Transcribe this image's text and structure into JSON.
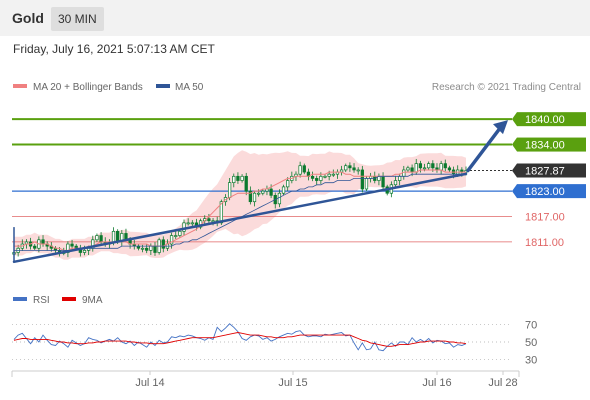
{
  "header": {
    "title": "Gold",
    "timeframe": "30 MIN"
  },
  "date_text": "Friday, July 16, 2021 5:07:13 AM CET",
  "copyright": "Research © 2021 Trading Central",
  "colors": {
    "ma20": "#f08080",
    "ma50": "#2f5597",
    "bollinger": "#f9cfcf",
    "candle": "#0b7a2e",
    "resistance": "#5aa00f",
    "support_blue": "#2f6fd0",
    "support_red": "#e06666",
    "current": "#333333",
    "trend": "#2f5597",
    "rsi": "#4472c4",
    "rsi_ma": "#e00000"
  },
  "chart_data": [
    {
      "type": "line",
      "legend": [
        {
          "name": "MA 20 + Bollinger Bands",
          "color": "#f08080"
        },
        {
          "name": "MA 50",
          "color": "#2f5597"
        }
      ],
      "x_ticks": [
        "Jul 14",
        "Jul 15",
        "Jul 16",
        "Jul 28"
      ],
      "ylim": [
        1802,
        1845
      ],
      "levels": [
        {
          "label": "1840.00",
          "value": 1840.0,
          "kind": "resistance"
        },
        {
          "label": "1834.00",
          "value": 1834.0,
          "kind": "resistance"
        },
        {
          "label": "1827.87",
          "value": 1827.87,
          "kind": "current"
        },
        {
          "label": "1823.00",
          "value": 1823.0,
          "kind": "support_blue"
        },
        {
          "label": "1817.00",
          "value": 1817.0,
          "kind": "support_red"
        },
        {
          "label": "1811.00",
          "value": 1811.0,
          "kind": "support_red"
        }
      ],
      "close": [
        1808.5,
        1809.5,
        1810.5,
        1811.0,
        1810.0,
        1809.5,
        1811.5,
        1810.5,
        1810.0,
        1809.5,
        1809.0,
        1808.5,
        1808.5,
        1810.5,
        1810.0,
        1809.5,
        1808.5,
        1809.0,
        1809.5,
        1811.5,
        1812.5,
        1811.0,
        1810.5,
        1811.0,
        1813.5,
        1811.0,
        1813.0,
        1811.5,
        1810.5,
        1810.0,
        1809.5,
        1809.5,
        1809.0,
        1810.0,
        1808.5,
        1811.5,
        1809.5,
        1810.5,
        1812.5,
        1812.5,
        1813.5,
        1815.5,
        1815.5,
        1815.5,
        1814.5,
        1816.0,
        1816.5,
        1816.0,
        1816.0,
        1815.5,
        1820.5,
        1821.5,
        1825.0,
        1826.5,
        1825.5,
        1826.5,
        1823.0,
        1820.5,
        1822.5,
        1822.5,
        1823.0,
        1823.5,
        1822.0,
        1820.0,
        1822.5,
        1824.0,
        1825.5,
        1826.5,
        1827.0,
        1829.0,
        1827.5,
        1826.5,
        1826.0,
        1825.5,
        1826.5,
        1826.5,
        1827.0,
        1827.0,
        1827.5,
        1828.0,
        1829.0,
        1828.5,
        1828.0,
        1828.0,
        1823.5,
        1826.0,
        1826.5,
        1825.5,
        1826.5,
        1824.0,
        1822.5,
        1824.5,
        1825.5,
        1826.5,
        1828.0,
        1828.5,
        1827.5,
        1829.5,
        1828.5,
        1828.5,
        1829.5,
        1828.5,
        1828.0,
        1829.5,
        1828.5,
        1828.0,
        1827.0,
        1828.0,
        1827.5,
        1827.87
      ],
      "ma20": [
        1810.0,
        1810.0,
        1810.0,
        1810.5,
        1810.5,
        1811.0,
        1810.5,
        1810.5,
        1810.5,
        1810.0,
        1809.5,
        1809.5,
        1809.0,
        1809.0,
        1809.5,
        1809.5,
        1809.5,
        1809.5,
        1810.0,
        1810.0,
        1810.5,
        1811.0,
        1811.0,
        1811.0,
        1811.0,
        1811.0,
        1811.0,
        1811.0,
        1810.5,
        1810.5,
        1810.5,
        1810.5,
        1810.5,
        1810.0,
        1810.0,
        1810.0,
        1810.0,
        1810.5,
        1811.0,
        1811.5,
        1812.0,
        1812.5,
        1813.0,
        1813.5,
        1814.0,
        1815.0,
        1816.0,
        1817.0,
        1818.0,
        1819.0,
        1820.0,
        1821.0,
        1821.5,
        1822.0,
        1822.5,
        1822.5,
        1822.5,
        1822.5,
        1823.0,
        1823.0,
        1823.5,
        1823.5,
        1824.0,
        1824.5,
        1825.0,
        1825.5,
        1826.0,
        1826.0,
        1826.5,
        1826.5,
        1826.5,
        1826.5,
        1827.0,
        1827.0,
        1827.0,
        1827.0,
        1827.5,
        1827.5,
        1827.5,
        1827.5,
        1827.0,
        1827.0,
        1826.5,
        1826.5,
        1826.5,
        1826.5,
        1826.5,
        1826.5,
        1826.5,
        1826.5,
        1826.5,
        1826.5,
        1827.0,
        1827.0,
        1827.5,
        1827.5,
        1827.5,
        1827.5,
        1828.0,
        1828.0,
        1828.0,
        1828.0,
        1828.0,
        1828.0,
        1827.5,
        1827.5,
        1827.5,
        1827.5,
        1827.5,
        1827.5
      ],
      "ma50": [
        1809.0,
        1809.0,
        1809.0,
        1809.0,
        1809.0,
        1809.0,
        1809.0,
        1809.0,
        1809.0,
        1809.0,
        1809.0,
        1809.0,
        1809.0,
        1809.0,
        1809.0,
        1809.5,
        1809.5,
        1809.5,
        1809.5,
        1809.5,
        1809.5,
        1809.5,
        1809.5,
        1809.5,
        1809.5,
        1809.5,
        1810.0,
        1810.0,
        1810.0,
        1810.0,
        1810.0,
        1810.0,
        1810.0,
        1810.0,
        1810.0,
        1810.0,
        1810.0,
        1810.0,
        1810.0,
        1810.5,
        1810.5,
        1811.0,
        1811.0,
        1811.5,
        1811.5,
        1812.0,
        1812.5,
        1813.0,
        1813.5,
        1814.0,
        1814.5,
        1815.0,
        1815.5,
        1816.0,
        1816.5,
        1817.0,
        1817.5,
        1818.0,
        1818.5,
        1819.0,
        1819.5,
        1820.0,
        1820.5,
        1821.0,
        1821.5,
        1822.0,
        1822.5,
        1823.0,
        1823.0,
        1823.5,
        1823.5,
        1824.0,
        1824.0,
        1824.5,
        1824.5,
        1825.0,
        1825.0,
        1825.0,
        1825.5,
        1825.5,
        1825.5,
        1825.5,
        1826.0,
        1826.0,
        1826.0,
        1826.0,
        1826.0,
        1826.0,
        1826.5,
        1826.5,
        1826.5,
        1826.5,
        1826.5,
        1826.5,
        1826.5,
        1826.5,
        1827.0,
        1827.0,
        1827.0,
        1827.0,
        1827.0,
        1827.0,
        1827.0,
        1827.0,
        1827.0,
        1827.0,
        1827.0,
        1827.0,
        1827.0,
        1827.0
      ]
    },
    {
      "type": "line",
      "legend": [
        {
          "name": "RSI",
          "color": "#4472c4"
        },
        {
          "name": "9MA",
          "color": "#e00000"
        }
      ],
      "y_ticks": [
        "70",
        "50",
        "30"
      ],
      "ylim": [
        20,
        80
      ],
      "rsi": [
        53,
        58,
        60,
        54,
        48,
        55,
        50,
        58,
        52,
        47,
        46,
        51,
        48,
        44,
        52,
        49,
        46,
        48,
        55,
        53,
        52,
        49,
        51,
        53,
        51,
        55,
        50,
        48,
        51,
        46,
        50,
        47,
        44,
        50,
        46,
        52,
        49,
        50,
        56,
        55,
        57,
        56,
        58,
        57,
        55,
        54,
        52,
        55,
        53,
        67,
        62,
        66,
        71,
        67,
        62,
        54,
        52,
        56,
        58,
        57,
        53,
        55,
        51,
        53,
        56,
        58,
        60,
        59,
        62,
        63,
        58,
        56,
        57,
        57,
        56,
        59,
        58,
        59,
        60,
        61,
        57,
        58,
        49,
        41,
        49,
        41,
        42,
        50,
        41,
        40,
        45,
        49,
        45,
        50,
        50,
        47,
        55,
        50,
        53,
        50,
        54,
        49,
        52,
        51,
        48,
        49,
        44,
        47,
        46,
        48
      ],
      "ma9": [
        52,
        53,
        54,
        54,
        53,
        53,
        53,
        53,
        53,
        52,
        51,
        50,
        50,
        49,
        49,
        48,
        48,
        48,
        49,
        49,
        50,
        50,
        51,
        51,
        51,
        51,
        51,
        51,
        50,
        50,
        49,
        49,
        49,
        48,
        48,
        48,
        48,
        49,
        50,
        51,
        52,
        53,
        54,
        55,
        55,
        55,
        55,
        55,
        55,
        56,
        57,
        58,
        59,
        60,
        61,
        60,
        59,
        58,
        58,
        58,
        57,
        56,
        56,
        55,
        55,
        55,
        56,
        56,
        57,
        58,
        58,
        58,
        58,
        58,
        58,
        58,
        58,
        58,
        58,
        58,
        58,
        58,
        56,
        54,
        52,
        51,
        49,
        48,
        47,
        46,
        45,
        45,
        46,
        47,
        47,
        47,
        48,
        49,
        50,
        50,
        51,
        51,
        51,
        51,
        51,
        50,
        50,
        49,
        49,
        48
      ]
    }
  ]
}
